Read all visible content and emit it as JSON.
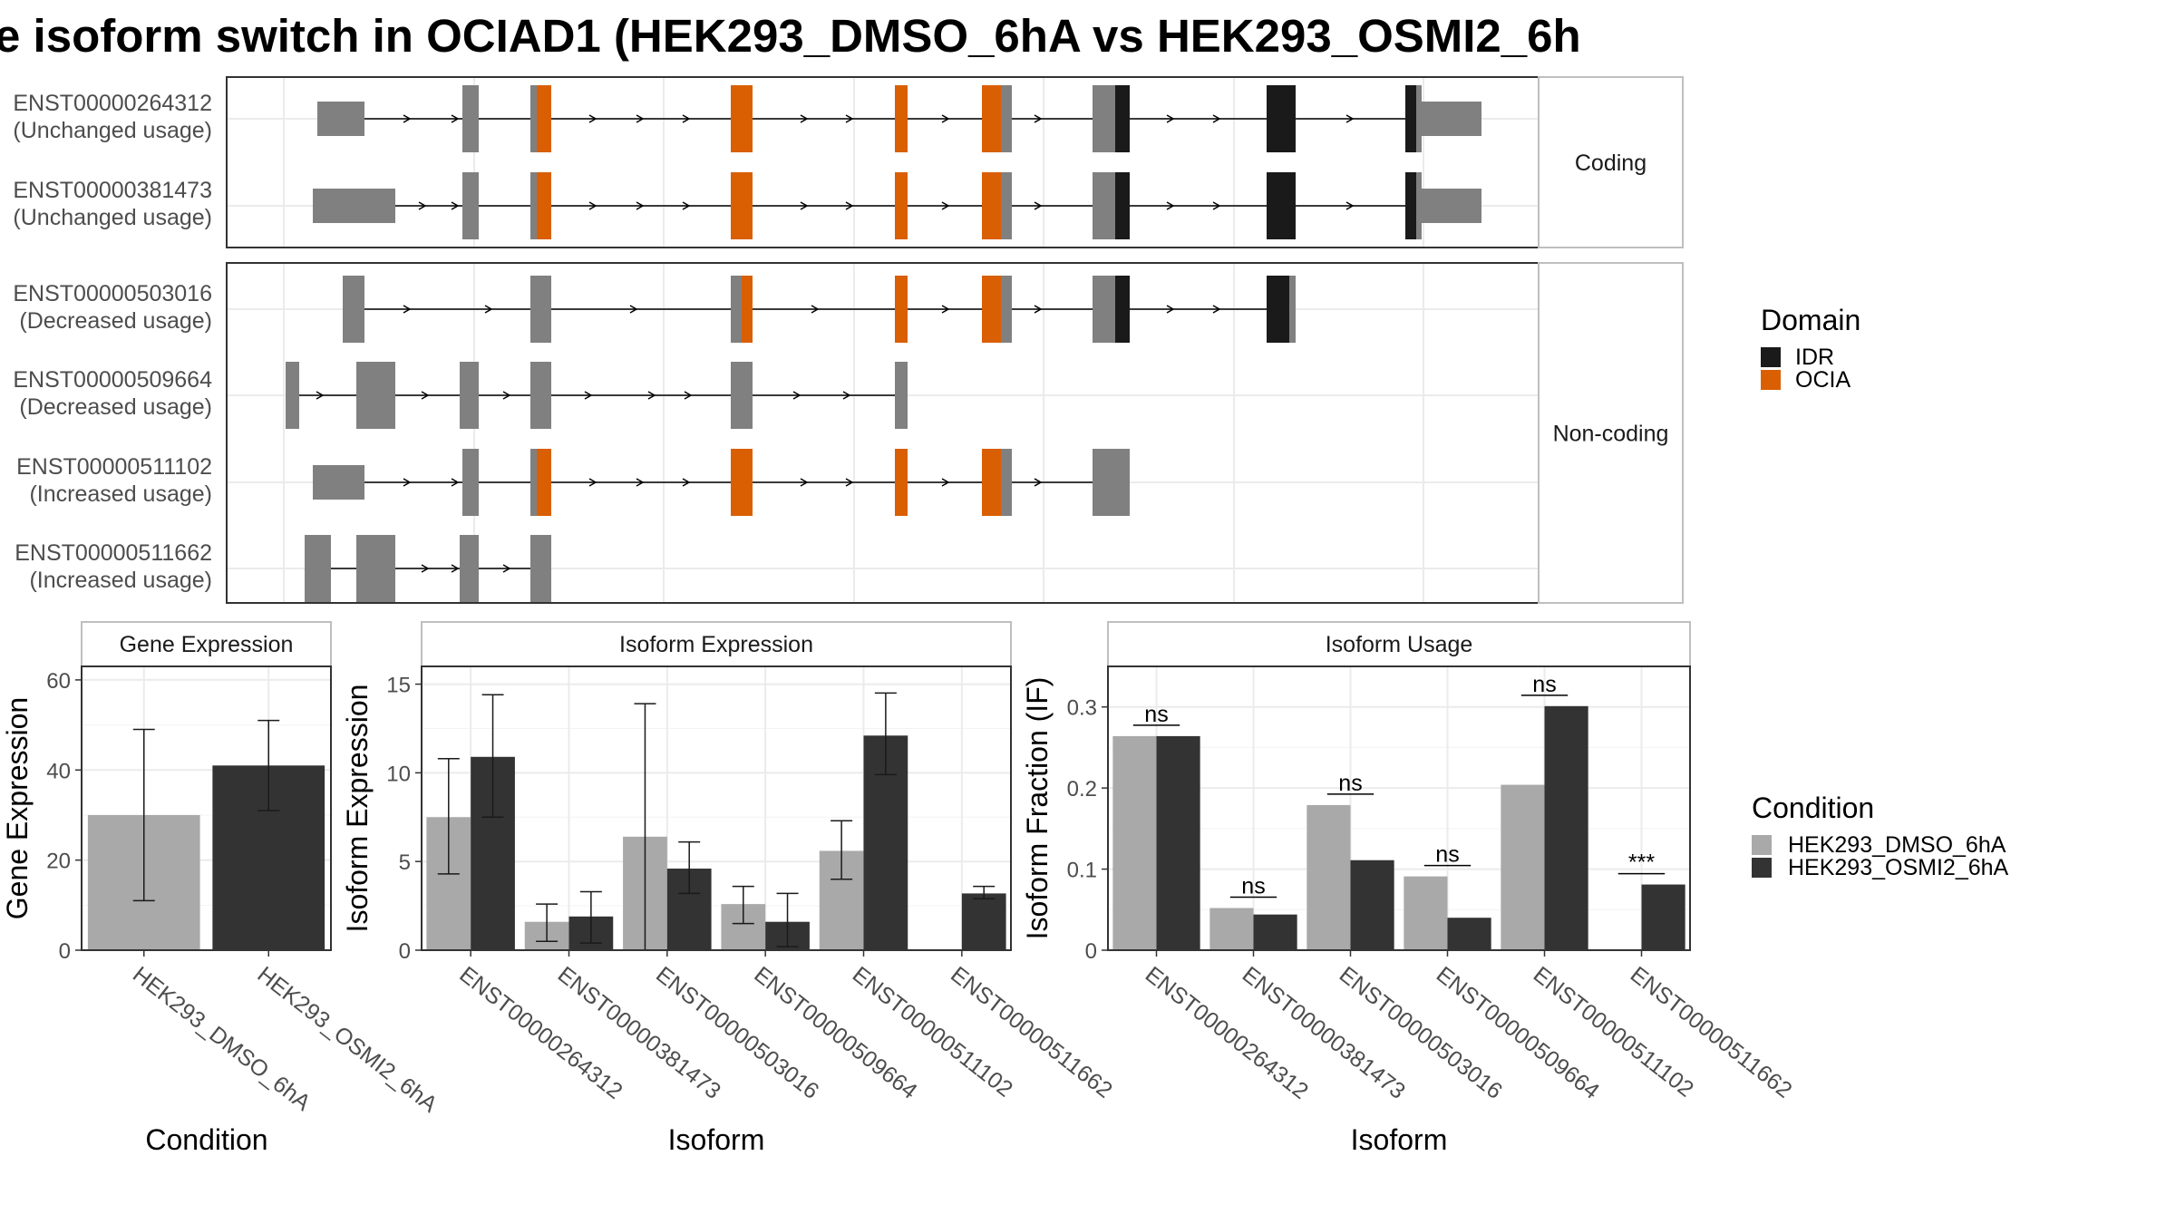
{
  "title": "e isoform switch in OCIAD1 (HEK293_DMSO_6hA vs HEK293_OSMI2_6h",
  "colors": {
    "exon": "#808080",
    "idr": "#1a1a1a",
    "ocia": "#d95f02",
    "dmso": "#a9a9a9",
    "osmi2": "#333333",
    "grid": "#ebebeb",
    "strip_text": "#1a1a1a"
  },
  "structure": {
    "panels": [
      {
        "label": "Coding",
        "transcripts": [
          {
            "id": "ENST00000264312",
            "status": "(Unchanged usage)"
          },
          {
            "id": "ENST00000381473",
            "status": "(Unchanged usage)"
          }
        ]
      },
      {
        "label": "Non-coding",
        "transcripts": [
          {
            "id": "ENST00000503016",
            "status": "(Decreased usage)"
          },
          {
            "id": "ENST00000509664",
            "status": "(Decreased usage)"
          },
          {
            "id": "ENST00000511102",
            "status": "(Increased usage)"
          },
          {
            "id": "ENST00000511662",
            "status": "(Increased usage)"
          }
        ]
      }
    ]
  },
  "legend_domain": {
    "title": "Domain",
    "items": [
      {
        "label": "IDR",
        "color": "#1a1a1a"
      },
      {
        "label": "OCIA",
        "color": "#d95f02"
      }
    ]
  },
  "legend_condition": {
    "title": "Condition",
    "items": [
      {
        "label": "HEK293_DMSO_6hA",
        "color": "#a9a9a9"
      },
      {
        "label": "HEK293_OSMI2_6hA",
        "color": "#333333"
      }
    ]
  },
  "chart_data": [
    {
      "type": "bar",
      "title": "Gene Expression",
      "xlabel": "Condition",
      "ylabel": "Gene Expression",
      "ylim": [
        0,
        63
      ],
      "yticks": [
        0,
        20,
        40,
        60
      ],
      "categories": [
        "HEK293_DMSO_6hA",
        "HEK293_OSMI2_6hA"
      ],
      "values": [
        30,
        41
      ],
      "errors": [
        [
          11,
          49
        ],
        [
          31,
          51
        ]
      ]
    },
    {
      "type": "bar",
      "title": "Isoform Expression",
      "xlabel": "Isoform",
      "ylabel": "Isoform Expression",
      "ylim": [
        0,
        16
      ],
      "yticks": [
        0,
        5,
        10,
        15
      ],
      "categories": [
        "ENST00000264312",
        "ENST00000381473",
        "ENST00000503016",
        "ENST00000509664",
        "ENST00000511102",
        "ENST00000511662"
      ],
      "series": [
        {
          "name": "HEK293_DMSO_6hA",
          "values": [
            7.5,
            1.6,
            6.4,
            2.6,
            5.6,
            0
          ],
          "errors": [
            [
              4.3,
              10.8
            ],
            [
              0.5,
              2.6
            ],
            [
              0,
              13.9
            ],
            [
              1.5,
              3.6
            ],
            [
              4.0,
              7.3
            ],
            [
              0,
              0
            ]
          ]
        },
        {
          "name": "HEK293_OSMI2_6hA",
          "values": [
            10.9,
            1.9,
            4.6,
            1.6,
            12.1,
            3.2
          ],
          "errors": [
            [
              7.5,
              14.4
            ],
            [
              0.4,
              3.3
            ],
            [
              3.2,
              6.1
            ],
            [
              0.2,
              3.2
            ],
            [
              9.9,
              14.5
            ],
            [
              2.9,
              3.6
            ]
          ]
        }
      ]
    },
    {
      "type": "bar",
      "title": "Isoform Usage",
      "xlabel": "Isoform",
      "ylabel": "Isoform Fraction (IF)",
      "ylim": [
        0,
        0.35
      ],
      "yticks": [
        0.0,
        0.1,
        0.2,
        0.3
      ],
      "categories": [
        "ENST00000264312",
        "ENST00000381473",
        "ENST00000503016",
        "ENST00000509664",
        "ENST00000511102",
        "ENST00000511662"
      ],
      "series": [
        {
          "name": "HEK293_DMSO_6hA",
          "values": [
            0.264,
            0.052,
            0.179,
            0.091,
            0.204,
            0
          ]
        },
        {
          "name": "HEK293_OSMI2_6hA",
          "values": [
            0.264,
            0.044,
            0.111,
            0.04,
            0.301,
            0.081
          ]
        }
      ],
      "significance": [
        "ns",
        "ns",
        "ns",
        "ns",
        "ns",
        "***"
      ]
    }
  ]
}
